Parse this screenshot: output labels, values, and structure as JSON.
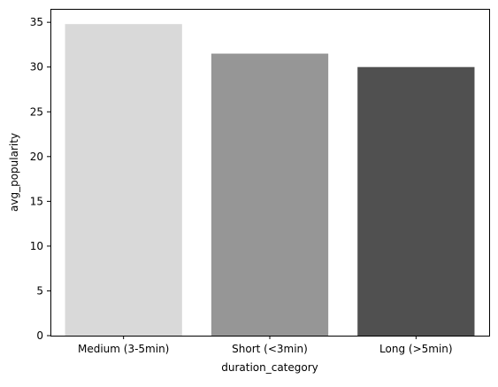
{
  "chart_data": {
    "type": "bar",
    "title": "",
    "xlabel": "duration_category",
    "ylabel": "avg_popularity",
    "categories": [
      "Medium (3-5min)",
      "Short (<3min)",
      "Long (>5min)"
    ],
    "values": [
      34.8,
      31.5,
      30.0
    ],
    "colors": [
      "#d9d9d9",
      "#969696",
      "#505050"
    ],
    "ylim": [
      0,
      36.5
    ],
    "yticks": [
      0,
      5,
      10,
      15,
      20,
      25,
      30,
      35
    ],
    "grid": false,
    "legend": "none"
  }
}
